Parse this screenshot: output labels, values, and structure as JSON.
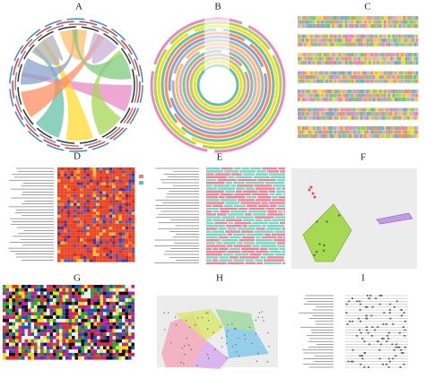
{
  "panels": [
    {
      "label": "A"
    },
    {
      "label": "B"
    },
    {
      "label": "C"
    },
    {
      "label": "D"
    },
    {
      "label": "E"
    },
    {
      "label": "F"
    },
    {
      "label": "G"
    },
    {
      "label": "H"
    },
    {
      "label": "I"
    }
  ]
}
